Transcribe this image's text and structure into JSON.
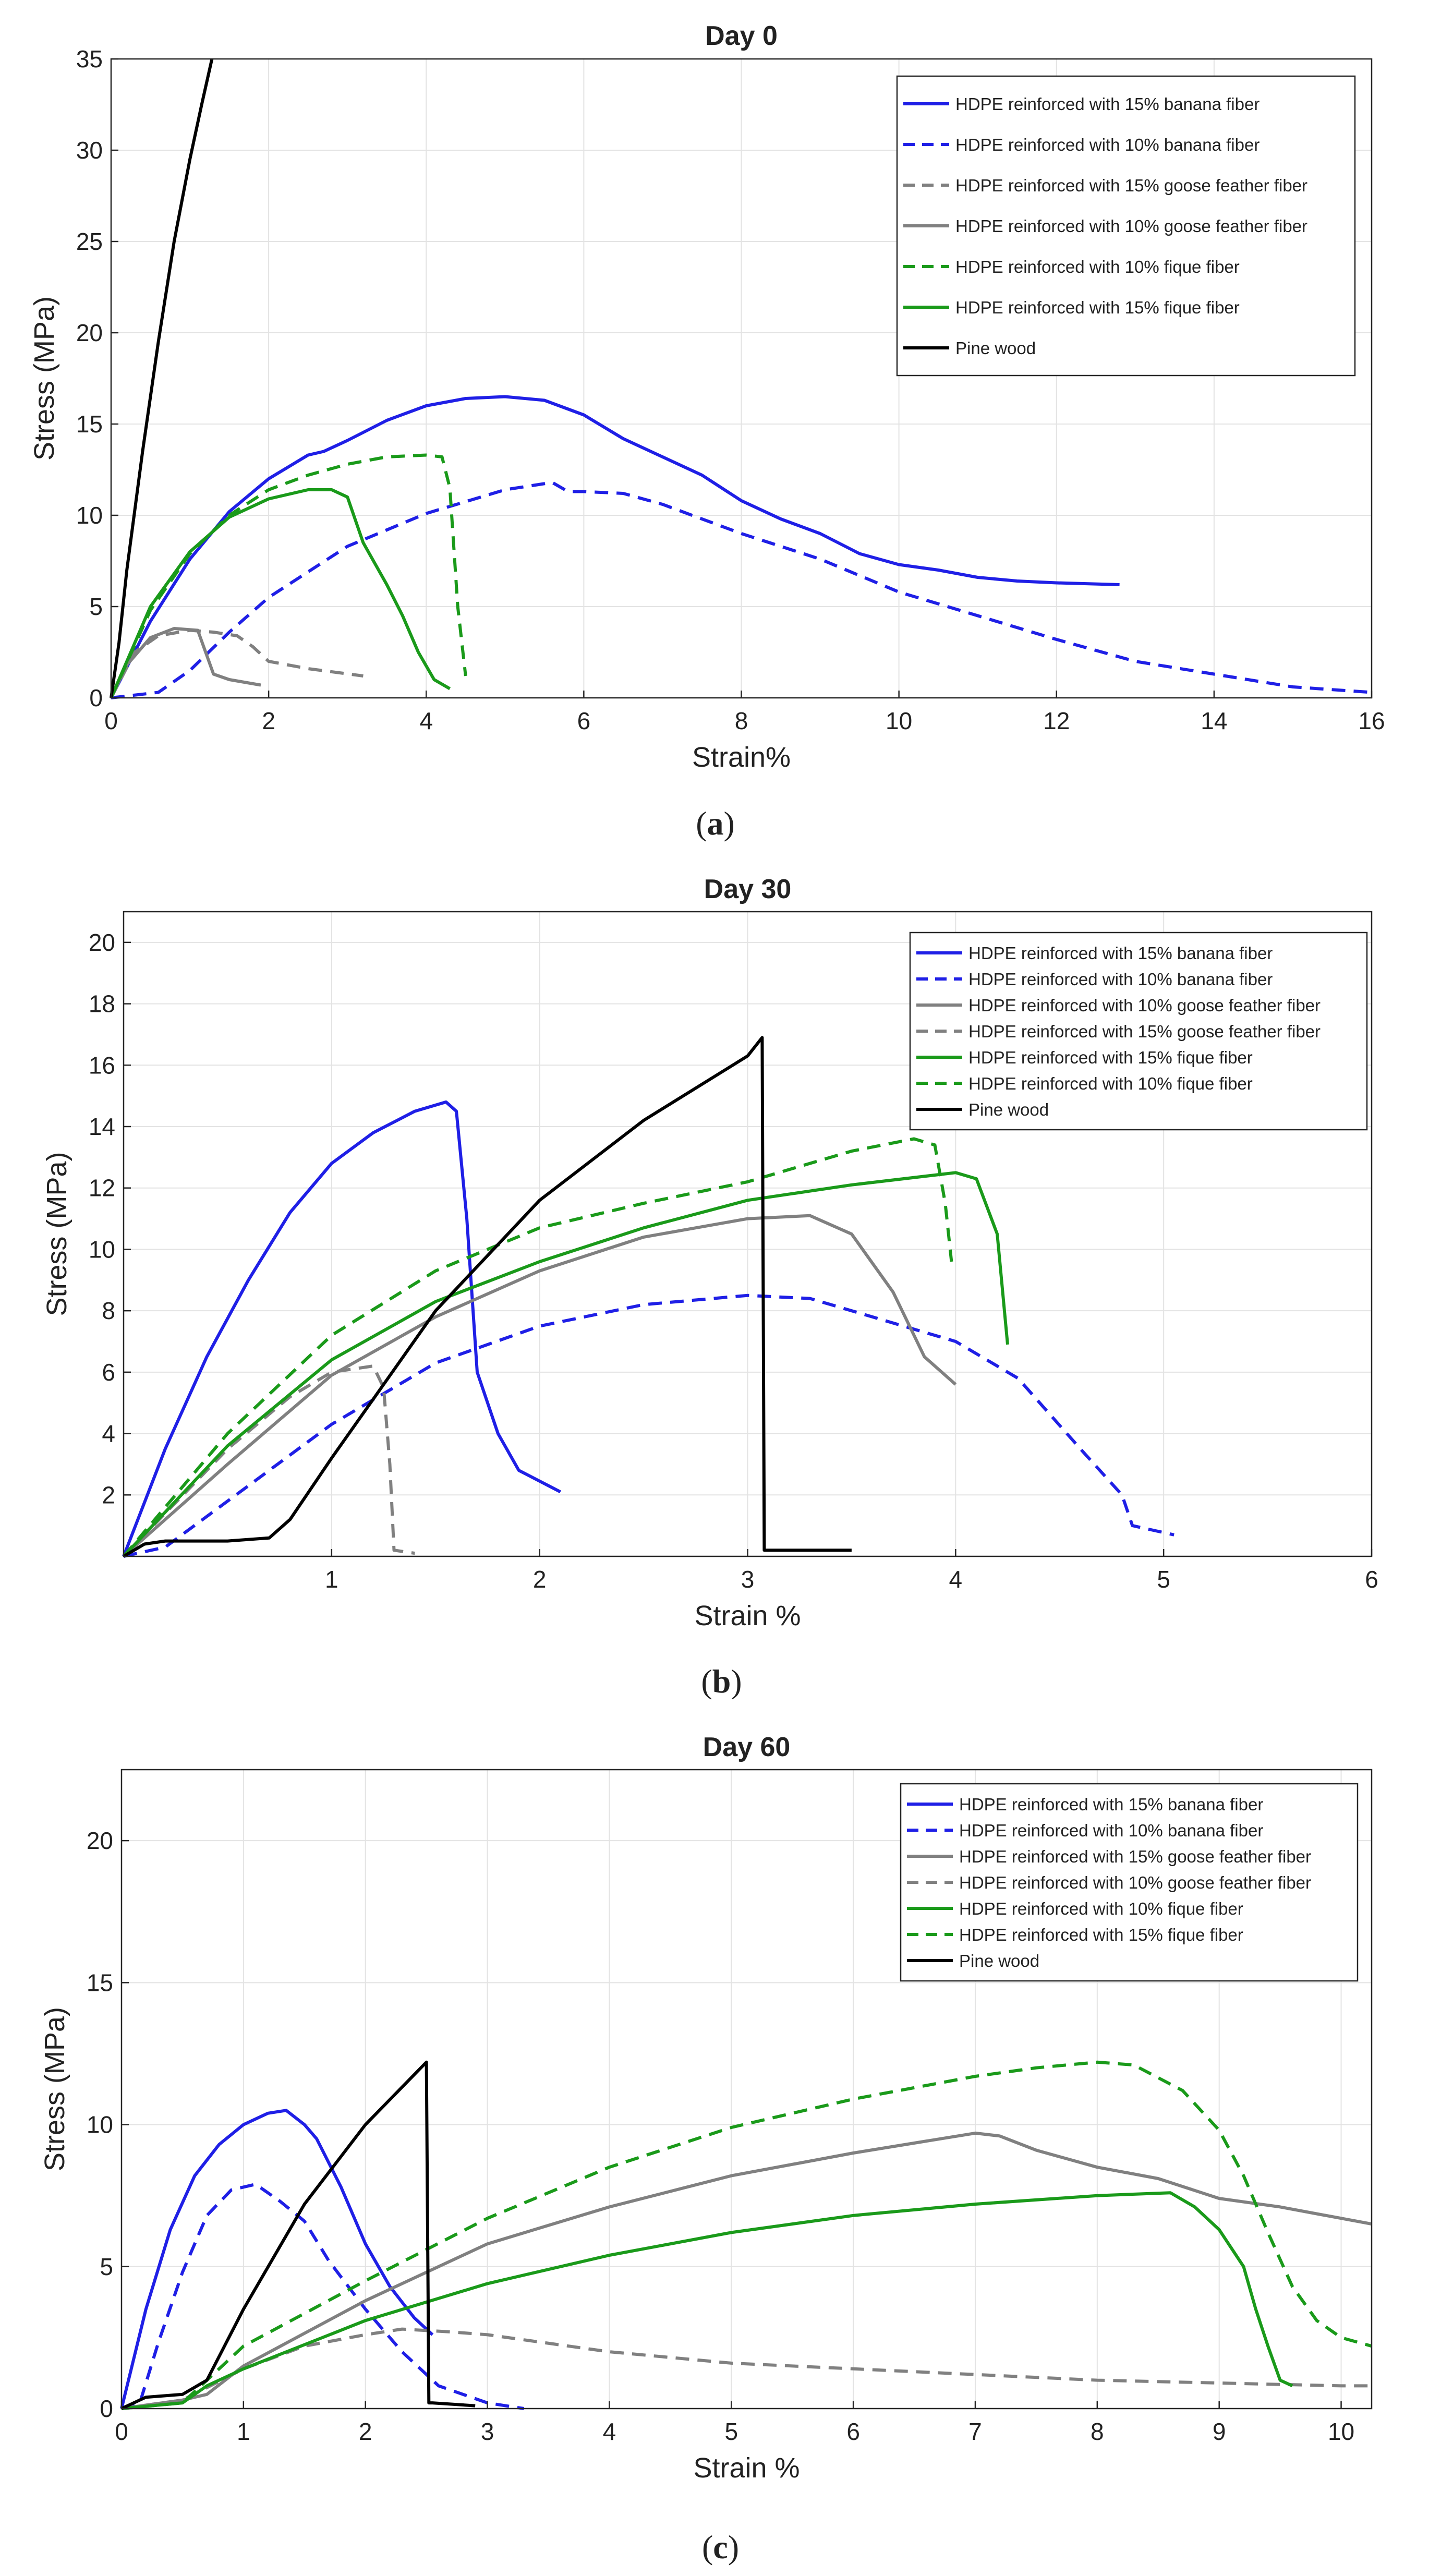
{
  "chart_data": [
    {
      "type": "line",
      "title": "Day 0",
      "xlabel": "Strain%",
      "ylabel": "Stress (MPa)",
      "xlim": [
        0,
        16
      ],
      "ylim": [
        0,
        35
      ],
      "xticks": [
        0,
        2,
        4,
        6,
        8,
        10,
        12,
        14,
        16
      ],
      "yticks": [
        0,
        5,
        10,
        15,
        20,
        25,
        30,
        35
      ],
      "grid": true,
      "legend_position": "top-right",
      "caption": {
        "open": "(",
        "letter": "a",
        "close": ")"
      },
      "series": [
        {
          "name": "HDPE reinforced with 15% banana fiber",
          "color": "#1f1fe6",
          "dash": "solid",
          "x": [
            0,
            0.5,
            1,
            1.5,
            2,
            2.5,
            2.7,
            2.8,
            3,
            3.5,
            4,
            4.5,
            5,
            5.5,
            6,
            6.5,
            7,
            7.5,
            8,
            8.5,
            9,
            9.5,
            10,
            10.5,
            11,
            11.5,
            12,
            12.8
          ],
          "y": [
            0,
            4.2,
            7.6,
            10.2,
            12,
            13.3,
            13.5,
            13.7,
            14.1,
            15.2,
            16,
            16.4,
            16.5,
            16.3,
            15.5,
            14.2,
            13.2,
            12.2,
            10.8,
            9.8,
            9,
            7.9,
            7.3,
            7,
            6.6,
            6.4,
            6.3,
            6.2
          ]
        },
        {
          "name": "HDPE reinforced with 10% banana fiber",
          "color": "#1f1fe6",
          "dash": "dashed",
          "x": [
            0,
            0.6,
            1,
            1.5,
            2,
            3,
            4,
            5,
            5.6,
            5.8,
            6,
            6.5,
            7,
            8,
            9,
            10,
            11,
            12,
            13,
            14,
            15,
            16
          ],
          "y": [
            0,
            0.3,
            1.5,
            3.6,
            5.5,
            8.3,
            10.1,
            11.4,
            11.8,
            11.3,
            11.3,
            11.2,
            10.6,
            9,
            7.6,
            5.8,
            4.5,
            3.2,
            2,
            1.3,
            0.6,
            0.3
          ]
        },
        {
          "name": "HDPE reinforced with 15% goose feather fiber",
          "color": "#808080",
          "dash": "dashed",
          "x": [
            0,
            0.3,
            0.6,
            1,
            1.3,
            1.6,
            1.8,
            2,
            2.5,
            3.2
          ],
          "y": [
            0,
            2.5,
            3.4,
            3.7,
            3.6,
            3.4,
            2.8,
            2,
            1.6,
            1.2
          ]
        },
        {
          "name": "HDPE reinforced with 10% goose feather fiber",
          "color": "#808080",
          "dash": "solid",
          "x": [
            0,
            0.2,
            0.5,
            0.8,
            1.1,
            1.2,
            1.3,
            1.5,
            1.9
          ],
          "y": [
            0,
            1.8,
            3.3,
            3.8,
            3.7,
            2.5,
            1.3,
            1,
            0.7
          ]
        },
        {
          "name": "HDPE reinforced with 10% fique fiber",
          "color": "#1a9a1a",
          "dash": "dashed",
          "x": [
            0,
            0.5,
            1,
            1.5,
            2,
            2.5,
            3,
            3.5,
            4,
            4.2,
            4.3,
            4.4,
            4.5
          ],
          "y": [
            0,
            4.8,
            7.9,
            10,
            11.4,
            12.2,
            12.8,
            13.2,
            13.3,
            13.2,
            11.5,
            5,
            1.2
          ]
        },
        {
          "name": "HDPE reinforced with 15% fique fiber",
          "color": "#1a9a1a",
          "dash": "solid",
          "x": [
            0,
            0.5,
            1,
            1.5,
            2,
            2.5,
            2.8,
            3,
            3.2,
            3.5,
            3.7,
            3.9,
            4.1,
            4.3
          ],
          "y": [
            0,
            5,
            8,
            9.9,
            10.9,
            11.4,
            11.4,
            11,
            8.5,
            6.2,
            4.5,
            2.5,
            1,
            0.5
          ]
        },
        {
          "name": "Pine wood",
          "color": "#000000",
          "dash": "solid",
          "x": [
            0,
            0.1,
            0.2,
            0.4,
            0.6,
            0.8,
            1,
            1.15,
            1.28
          ],
          "y": [
            0,
            3,
            7,
            13.5,
            19.5,
            25,
            29.5,
            32.5,
            35
          ]
        }
      ]
    },
    {
      "type": "line",
      "title": "Day 30",
      "xlabel": "Strain %",
      "ylabel": "Stress (MPa)",
      "xlim": [
        0,
        6
      ],
      "ylim": [
        0,
        21
      ],
      "xticks": [
        1,
        2,
        3,
        4,
        5,
        6
      ],
      "yticks": [
        2,
        4,
        6,
        8,
        10,
        12,
        14,
        16,
        18,
        20
      ],
      "grid": true,
      "legend_position": "top-right",
      "caption": {
        "open": "(",
        "letter": "b",
        "close": ")"
      },
      "series": [
        {
          "name": "HDPE reinforced with 15% banana fiber",
          "color": "#1f1fe6",
          "dash": "solid",
          "x": [
            0,
            0.2,
            0.4,
            0.6,
            0.8,
            1,
            1.2,
            1.4,
            1.55,
            1.6,
            1.65,
            1.7,
            1.8,
            1.9,
            2.1
          ],
          "y": [
            0,
            3.5,
            6.5,
            9,
            11.2,
            12.8,
            13.8,
            14.5,
            14.8,
            14.5,
            11,
            6,
            4,
            2.8,
            2.1
          ]
        },
        {
          "name": "HDPE reinforced with 10% banana fiber",
          "color": "#1f1fe6",
          "dash": "dashed",
          "x": [
            0,
            0.2,
            0.5,
            1,
            1.5,
            2,
            2.5,
            3,
            3.3,
            3.6,
            4,
            4.3,
            4.6,
            4.8,
            4.85,
            5.05
          ],
          "y": [
            0,
            0.3,
            1.8,
            4.3,
            6.3,
            7.5,
            8.2,
            8.5,
            8.4,
            7.8,
            7,
            5.8,
            3.5,
            2,
            1,
            0.7
          ]
        },
        {
          "name": "HDPE reinforced with 10% goose feather fiber",
          "color": "#808080",
          "dash": "solid",
          "x": [
            0,
            0.5,
            1,
            1.5,
            2,
            2.5,
            3,
            3.3,
            3.5,
            3.7,
            3.85,
            4
          ],
          "y": [
            0,
            3,
            5.9,
            7.8,
            9.3,
            10.4,
            11,
            11.1,
            10.5,
            8.6,
            6.5,
            5.6
          ]
        },
        {
          "name": "HDPE reinforced with 15% goose feather fiber",
          "color": "#808080",
          "dash": "dashed",
          "x": [
            0,
            0.5,
            0.8,
            1,
            1.2,
            1.25,
            1.28,
            1.3,
            1.4
          ],
          "y": [
            0,
            3.5,
            5.2,
            6,
            6.2,
            5.5,
            3,
            0.2,
            0.1
          ]
        },
        {
          "name": "HDPE reinforced with 15% fique fiber",
          "color": "#1a9a1a",
          "dash": "solid",
          "x": [
            0,
            0.5,
            1,
            1.5,
            2,
            2.5,
            3,
            3.5,
            4,
            4.1,
            4.2,
            4.25
          ],
          "y": [
            0,
            3.6,
            6.4,
            8.3,
            9.6,
            10.7,
            11.6,
            12.1,
            12.5,
            12.3,
            10.5,
            6.9
          ]
        },
        {
          "name": "HDPE reinforced with 10% fique fiber",
          "color": "#1a9a1a",
          "dash": "dashed",
          "x": [
            0,
            0.5,
            1,
            1.5,
            2,
            2.5,
            3,
            3.5,
            3.8,
            3.9,
            3.95,
            3.98
          ],
          "y": [
            0,
            4,
            7.2,
            9.3,
            10.7,
            11.5,
            12.2,
            13.2,
            13.6,
            13.4,
            11.5,
            9.6
          ]
        },
        {
          "name": "Pine wood",
          "color": "#000000",
          "dash": "solid",
          "x": [
            0,
            0.1,
            0.2,
            0.5,
            0.7,
            0.8,
            1,
            1.5,
            2,
            2.5,
            3,
            3.07,
            3.08,
            3.1,
            3.5
          ],
          "y": [
            0,
            0.4,
            0.5,
            0.5,
            0.6,
            1.2,
            3.2,
            8,
            11.6,
            14.2,
            16.3,
            16.9,
            0.2,
            0.2,
            0.2
          ]
        }
      ]
    },
    {
      "type": "line",
      "title": "Day 60",
      "xlabel": "Strain %",
      "ylabel": "Stress (MPa)",
      "xlim": [
        0,
        10.25
      ],
      "ylim": [
        0,
        22.5
      ],
      "xticks": [
        0,
        1,
        2,
        3,
        4,
        5,
        6,
        7,
        8,
        9,
        10
      ],
      "yticks": [
        0,
        5,
        10,
        15,
        20
      ],
      "grid": true,
      "legend_position": "top-right",
      "caption": {
        "open": "(",
        "letter": "c",
        "close": ")"
      },
      "series": [
        {
          "name": "HDPE reinforced with 15% banana fiber",
          "color": "#1f1fe6",
          "dash": "solid",
          "x": [
            0,
            0.2,
            0.4,
            0.6,
            0.8,
            1,
            1.2,
            1.35,
            1.5,
            1.6,
            1.8,
            2,
            2.2,
            2.4,
            2.55
          ],
          "y": [
            0,
            3.5,
            6.3,
            8.2,
            9.3,
            10,
            10.4,
            10.5,
            10,
            9.5,
            7.8,
            5.8,
            4.3,
            3.2,
            2.6
          ]
        },
        {
          "name": "HDPE reinforced with 10% banana fiber",
          "color": "#1f1fe6",
          "dash": "dashed",
          "x": [
            0,
            0.15,
            0.3,
            0.5,
            0.7,
            0.9,
            1.1,
            1.3,
            1.5,
            1.7,
            2,
            2.3,
            2.6,
            3,
            3.3
          ],
          "y": [
            0,
            0.2,
            2.3,
            4.8,
            6.8,
            7.7,
            7.9,
            7.3,
            6.6,
            5.2,
            3.5,
            2,
            0.8,
            0.2,
            0
          ]
        },
        {
          "name": "HDPE reinforced with 15% goose feather fiber",
          "color": "#808080",
          "dash": "solid",
          "x": [
            0,
            0.5,
            0.7,
            1,
            2,
            3,
            4,
            5,
            6,
            7,
            7.2,
            7.5,
            8,
            8.5,
            9,
            9.5,
            10,
            10.25
          ],
          "y": [
            0,
            0.3,
            0.5,
            1.5,
            3.8,
            5.8,
            7.1,
            8.2,
            9,
            9.7,
            9.6,
            9.1,
            8.5,
            8.1,
            7.4,
            7.1,
            6.7,
            6.5
          ]
        },
        {
          "name": "HDPE reinforced with 10% goose feather fiber",
          "color": "#808080",
          "dash": "dashed",
          "x": [
            0,
            0.5,
            1,
            1.5,
            2,
            2.3,
            2.7,
            3,
            4,
            5,
            6,
            7,
            8,
            9,
            10,
            10.25
          ],
          "y": [
            0,
            0.3,
            1.4,
            2.2,
            2.6,
            2.8,
            2.7,
            2.6,
            2,
            1.6,
            1.4,
            1.2,
            1,
            0.9,
            0.8,
            0.8
          ]
        },
        {
          "name": "HDPE reinforced with 10% fique fiber",
          "color": "#1a9a1a",
          "dash": "solid",
          "x": [
            0,
            0.5,
            0.7,
            1,
            2,
            3,
            4,
            5,
            6,
            7,
            8,
            8.6,
            8.8,
            9,
            9.2,
            9.3,
            9.4,
            9.5,
            9.6
          ],
          "y": [
            0,
            0.2,
            0.8,
            1.4,
            3.1,
            4.4,
            5.4,
            6.2,
            6.8,
            7.2,
            7.5,
            7.6,
            7.1,
            6.3,
            5,
            3.5,
            2.2,
            1,
            0.8
          ]
        },
        {
          "name": "HDPE reinforced with 15% fique fiber",
          "color": "#1a9a1a",
          "dash": "dashed",
          "x": [
            0,
            0.5,
            0.7,
            1,
            2,
            3,
            4,
            5,
            6,
            7,
            7.5,
            8,
            8.3,
            8.7,
            9,
            9.2,
            9.4,
            9.6,
            9.8,
            10,
            10.25
          ],
          "y": [
            0,
            0.2,
            1,
            2.2,
            4.5,
            6.7,
            8.5,
            9.9,
            10.9,
            11.7,
            12,
            12.2,
            12.1,
            11.2,
            9.8,
            8.2,
            6.2,
            4.3,
            3.1,
            2.5,
            2.2
          ]
        },
        {
          "name": "Pine wood",
          "color": "#000000",
          "dash": "solid",
          "x": [
            0,
            0.2,
            0.5,
            0.7,
            1,
            1.5,
            2,
            2.5,
            2.52,
            2.55,
            2.9
          ],
          "y": [
            0,
            0.4,
            0.5,
            1,
            3.5,
            7.2,
            10,
            12.2,
            0.2,
            0.2,
            0.1
          ]
        }
      ]
    }
  ]
}
